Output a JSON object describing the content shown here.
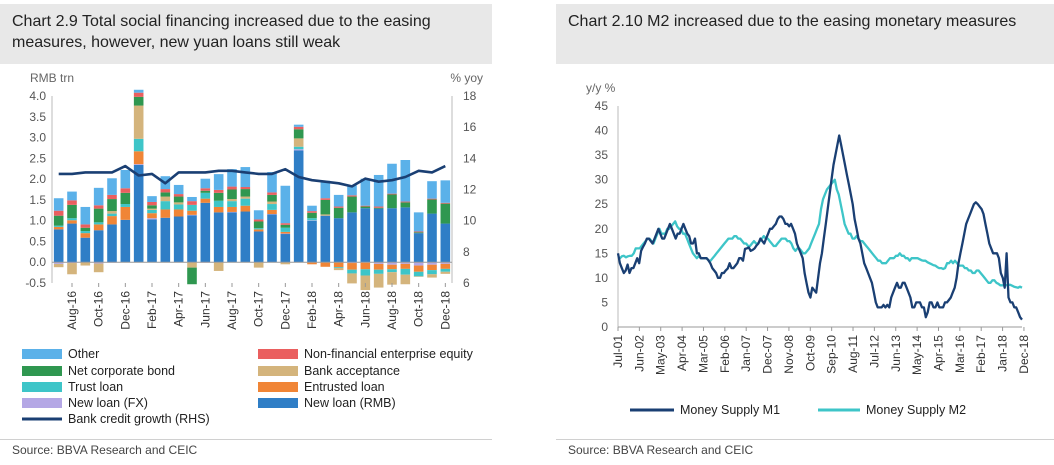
{
  "charts": [
    {
      "title": "Chart 2.9 Total social financing increased due to the easing measures, however, new yuan loans still weak",
      "source": "Source: BBVA Research and CEIC"
    },
    {
      "title": "Chart 2.10 M2 increased due to the easing monetary measures",
      "source": "Source: BBVA Research and CEIC"
    }
  ],
  "chart_data": [
    {
      "type": "bar",
      "stacked": true,
      "title": "Chart 2.9 Total social financing increased due to the easing measures, however, new yuan loans still weak",
      "ylabel": "RMB trn",
      "y2label": "% yoy",
      "ylim": [
        -0.5,
        4.0
      ],
      "yticks": [
        "4.0",
        "3.5",
        "3.0",
        "2.5",
        "2.0",
        "1.5",
        "1.0",
        "0.5",
        "0.0",
        "-0.5"
      ],
      "y2lim": [
        6,
        18
      ],
      "y2ticks": [
        "18",
        "16",
        "14",
        "12",
        "10",
        "8",
        "6"
      ],
      "xlabels": [
        "Aug-16",
        "Oct-16",
        "Dec-16",
        "Feb-17",
        "Apr-17",
        "Jun-17",
        "Aug-17",
        "Oct-17",
        "Dec-17",
        "Feb-18",
        "Apr-18",
        "Jun-18",
        "Aug-18",
        "Oct-18",
        "Dec-18"
      ],
      "categories": [
        "Jul-16",
        "Aug-16",
        "Sep-16",
        "Oct-16",
        "Nov-16",
        "Dec-16",
        "Jan-17",
        "Feb-17",
        "Mar-17",
        "Apr-17",
        "May-17",
        "Jun-17",
        "Jul-17",
        "Aug-17",
        "Sep-17",
        "Oct-17",
        "Nov-17",
        "Dec-17",
        "Jan-18",
        "Feb-18",
        "Mar-18",
        "Apr-18",
        "May-18",
        "Jun-18",
        "Jul-18",
        "Aug-18",
        "Sep-18",
        "Oct-18",
        "Nov-18",
        "Dec-18"
      ],
      "series": [
        {
          "name": "New loan (RMB)",
          "color": "#2f7ec6",
          "values": [
            0.79,
            0.93,
            0.59,
            0.77,
            0.91,
            1.02,
            2.34,
            1.03,
            1.07,
            1.1,
            1.13,
            1.43,
            1.2,
            1.2,
            1.22,
            0.74,
            1.15,
            0.68,
            2.69,
            1.0,
            1.12,
            1.06,
            1.2,
            1.3,
            1.29,
            1.3,
            1.32,
            0.7,
            1.17,
            0.93
          ]
        },
        {
          "name": "New loan (FX)",
          "color": "#b4a7e5",
          "values": [
            -0.04,
            -0.02,
            0.0,
            -0.03,
            -0.01,
            0.0,
            0.02,
            0.03,
            0.0,
            0.0,
            0.01,
            -0.01,
            0.0,
            0.01,
            0.0,
            0.0,
            0.01,
            0.01,
            0.03,
            0.01,
            0.0,
            0.0,
            -0.02,
            -0.01,
            -0.04,
            -0.06,
            -0.04,
            -0.08,
            -0.06,
            -0.04
          ]
        },
        {
          "name": "Entrusted loan",
          "color": "#f08536",
          "values": [
            0.06,
            0.08,
            0.11,
            0.14,
            0.2,
            0.31,
            0.31,
            0.12,
            0.2,
            0.17,
            0.1,
            0.1,
            0.13,
            0.12,
            0.14,
            0.05,
            0.1,
            0.04,
            0.0,
            -0.05,
            -0.11,
            -0.12,
            -0.16,
            -0.16,
            -0.14,
            -0.11,
            -0.12,
            -0.15,
            -0.13,
            -0.12
          ]
        },
        {
          "name": "Trust loan",
          "color": "#3ec5c8",
          "values": [
            0.03,
            0.05,
            0.05,
            0.05,
            0.06,
            0.07,
            0.3,
            0.08,
            0.2,
            0.12,
            0.14,
            0.14,
            0.15,
            0.14,
            0.17,
            0.03,
            0.14,
            0.1,
            0.06,
            0.05,
            0.0,
            -0.02,
            -0.09,
            -0.15,
            -0.1,
            -0.07,
            -0.14,
            -0.11,
            -0.1,
            -0.07
          ]
        },
        {
          "name": "Bank acceptance",
          "color": "#d4b47c",
          "values": [
            -0.08,
            -0.27,
            -0.08,
            -0.21,
            0.06,
            0.0,
            0.8,
            0.03,
            0.11,
            0.05,
            -0.13,
            0.0,
            -0.21,
            0.05,
            0.05,
            -0.13,
            0.06,
            -0.05,
            0.2,
            0.0,
            0.03,
            -0.05,
            -0.24,
            -0.35,
            -0.33,
            -0.3,
            -0.23,
            -0.01,
            -0.08,
            -0.05
          ]
        },
        {
          "name": "Net corporate bond",
          "color": "#2f9750",
          "values": [
            0.24,
            0.32,
            0.08,
            0.33,
            0.29,
            0.27,
            0.21,
            0.08,
            0.1,
            0.14,
            -0.4,
            0.05,
            0.19,
            0.23,
            0.18,
            0.16,
            0.16,
            0.07,
            0.22,
            0.13,
            0.35,
            0.25,
            0.38,
            0.04,
            0.02,
            0.33,
            0.12,
            0.02,
            0.34,
            0.48
          ]
        },
        {
          "name": "Non-financial enterprise equity",
          "color": "#ea5f5f",
          "values": [
            0.12,
            0.11,
            0.08,
            0.08,
            0.1,
            0.11,
            0.1,
            0.08,
            0.08,
            0.06,
            0.09,
            0.06,
            0.07,
            0.07,
            0.05,
            0.05,
            0.06,
            0.04,
            0.06,
            0.04,
            0.04,
            0.03,
            0.03,
            0.02,
            0.03,
            0.02,
            0.02,
            0.02,
            0.02,
            0.02
          ]
        },
        {
          "name": "Other",
          "color": "#5bb1e9",
          "values": [
            0.3,
            0.21,
            0.42,
            0.42,
            0.4,
            0.44,
            0.07,
            0.14,
            0.31,
            0.22,
            0.1,
            0.23,
            0.38,
            0.42,
            0.48,
            0.22,
            0.49,
            0.9,
            0.05,
            0.13,
            0.42,
            0.28,
            0.24,
            0.65,
            0.76,
            0.72,
            1.0,
            0.46,
            0.42,
            0.54
          ]
        }
      ],
      "line": {
        "name": "Bank credit growth (RHS)",
        "color": "#1a3f73",
        "axis": "right",
        "values": [
          13.0,
          13.0,
          13.1,
          13.1,
          13.1,
          13.5,
          12.9,
          13.0,
          12.4,
          13.1,
          13.1,
          13.1,
          13.2,
          13.2,
          13.1,
          13.0,
          13.0,
          13.3,
          12.8,
          12.6,
          12.5,
          12.4,
          12.2,
          12.7,
          12.5,
          12.6,
          12.8,
          13.2,
          13.1,
          13.5
        ]
      }
    },
    {
      "type": "line",
      "title": "Chart 2.10 M2 increased due to the easing monetary measures",
      "ylabel": "y/y %",
      "ylim": [
        0,
        45
      ],
      "yticks": [
        "45",
        "40",
        "35",
        "30",
        "25",
        "20",
        "15",
        "10",
        "5",
        "0"
      ],
      "xlabels": [
        "Jul-01",
        "Jun-02",
        "May-03",
        "Apr-04",
        "Mar-05",
        "Feb-06",
        "Jan-07",
        "Dec-07",
        "Nov-08",
        "Oct-09",
        "Sep-10",
        "Aug-11",
        "Jul-12",
        "Jun-13",
        "May-14",
        "Apr-15",
        "Mar-16",
        "Feb-17",
        "Jan-18",
        "Dec-18"
      ],
      "x_start": "Jul-01",
      "x_step": "1 month",
      "series": [
        {
          "name": "Money Supply M1",
          "color": "#1a3f73",
          "values": [
            15,
            13,
            12,
            11,
            11.5,
            12.7,
            11,
            12,
            12,
            13,
            14,
            13,
            15.5,
            16.3,
            17,
            18,
            18,
            17.5,
            17,
            18,
            19,
            20,
            19,
            18,
            18,
            19,
            20,
            21,
            20,
            19,
            18,
            19,
            19,
            20,
            21,
            20,
            19,
            18.5,
            17,
            17,
            18,
            15,
            15,
            14,
            14,
            14,
            14,
            13.6,
            13,
            12,
            11.5,
            11,
            10,
            10,
            11,
            11,
            11.5,
            11.9,
            13,
            12,
            12,
            12.5,
            13,
            14,
            14,
            13.5,
            15.9,
            16,
            16.2,
            15.5,
            15.7,
            16,
            16.6,
            17,
            18,
            17.5,
            17,
            18,
            19,
            20,
            20,
            20.5,
            21,
            22,
            22.5,
            22.5,
            22,
            21,
            21,
            20.5,
            21,
            20,
            19,
            17,
            16,
            15,
            14,
            11,
            9,
            7,
            6,
            8,
            7.5,
            7,
            10,
            13,
            15,
            18,
            21,
            24,
            27,
            30,
            33,
            35,
            37,
            39,
            37,
            35,
            33,
            31,
            29,
            27,
            25,
            22,
            20,
            18,
            17,
            15,
            13,
            12,
            11,
            10,
            9,
            7,
            5,
            4,
            4,
            4,
            4.5,
            4,
            4.5,
            4,
            6,
            7,
            8,
            9,
            8,
            8,
            9,
            9,
            8,
            7,
            6,
            4,
            4,
            5,
            5,
            5,
            4,
            4,
            2,
            3,
            5,
            5,
            4,
            4,
            5,
            4,
            4,
            4,
            5,
            5,
            5.5,
            6,
            7,
            8,
            10,
            13,
            15,
            17,
            19,
            21,
            22,
            23,
            24,
            25,
            25.4,
            25,
            24.5,
            24,
            23,
            21,
            19,
            17,
            16,
            15,
            15,
            15,
            14,
            11,
            10,
            8,
            15,
            6,
            5,
            5,
            4,
            4,
            3,
            2,
            1.5
          ]
        },
        {
          "name": "Money Supply M2",
          "color": "#3ec5c8",
          "values": [
            14,
            14,
            14.4,
            14.5,
            14.2,
            14.4,
            14.5,
            14.5,
            15,
            16,
            16,
            16,
            16.5,
            17,
            17.5,
            18,
            18,
            17.5,
            17,
            18,
            19,
            20,
            19,
            19,
            19,
            20,
            20,
            20.5,
            21,
            21.5,
            20.5,
            20,
            20,
            19,
            19,
            18,
            17,
            16,
            15,
            14.5,
            14,
            14.5,
            14,
            14,
            14,
            14,
            13.5,
            13.5,
            14,
            14.5,
            15,
            15.5,
            16,
            16.5,
            17,
            17.5,
            18,
            18,
            18,
            18.5,
            18.5,
            18,
            18,
            17.5,
            17,
            17,
            16.5,
            16.5,
            17,
            17.5,
            17,
            17,
            17.5,
            18,
            18.5,
            18,
            18,
            17.5,
            17,
            16.5,
            16.5,
            17,
            17.5,
            18,
            18,
            18,
            17.5,
            17.5,
            17,
            16,
            15.5,
            16,
            16,
            15.5,
            15,
            15,
            15.5,
            16,
            17,
            18,
            19,
            20,
            21,
            24,
            26,
            27,
            28,
            28.5,
            29,
            29.5,
            30,
            28,
            27,
            25,
            23,
            21,
            20,
            19,
            19,
            18,
            18,
            18.5,
            18,
            17.5,
            17.5,
            17,
            16.5,
            16,
            15.5,
            15,
            14.5,
            14,
            13.5,
            13.5,
            13,
            13,
            13,
            13.5,
            14,
            14,
            14,
            14.5,
            14.5,
            15,
            14.5,
            14.5,
            14,
            14,
            13.5,
            14,
            14,
            14,
            14,
            13.8,
            13.6,
            13.5,
            13.5,
            13.2,
            13,
            12.8,
            12.6,
            12.5,
            12.2,
            12,
            12,
            11.8,
            12,
            13,
            13,
            13.5,
            13,
            13.5,
            13,
            12.5,
            12.5,
            12.5,
            12,
            12,
            11.5,
            11.5,
            11,
            11,
            11.5,
            11.5,
            11,
            10.5,
            10,
            9.5,
            9,
            9,
            9.5,
            9.5,
            9,
            8.8,
            8.5,
            8.5,
            8.5,
            8.5,
            8.6,
            8.6,
            8.4,
            8.2,
            8.1,
            8,
            8.2,
            8
          ]
        }
      ]
    }
  ]
}
